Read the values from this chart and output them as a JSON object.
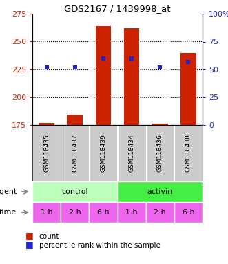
{
  "title": "GDS2167 / 1439998_at",
  "samples": [
    "GSM118435",
    "GSM118437",
    "GSM118439",
    "GSM118434",
    "GSM118436",
    "GSM118438"
  ],
  "count_values": [
    177,
    184,
    264,
    262,
    176,
    240
  ],
  "percentile_values": [
    52,
    52,
    60,
    60,
    52,
    57
  ],
  "ylim_left": [
    175,
    275
  ],
  "ylim_right": [
    0,
    100
  ],
  "yticks_left": [
    175,
    200,
    225,
    250,
    275
  ],
  "yticks_right": [
    0,
    25,
    50,
    75,
    100
  ],
  "grid_values": [
    200,
    225,
    250
  ],
  "bar_color": "#cc2200",
  "dot_color": "#2222cc",
  "agent_labels": [
    "control",
    "activin"
  ],
  "agent_colors": [
    "#bbffbb",
    "#44ee44"
  ],
  "time_labels": [
    "1 h",
    "2 h",
    "6 h",
    "1 h",
    "2 h",
    "6 h"
  ],
  "time_color": "#ee66ee",
  "label_color_left": "#cc2200",
  "label_color_right": "#2222cc",
  "bg_samples": "#cccccc",
  "legend_bar_color": "#cc2200",
  "legend_dot_color": "#2222cc"
}
